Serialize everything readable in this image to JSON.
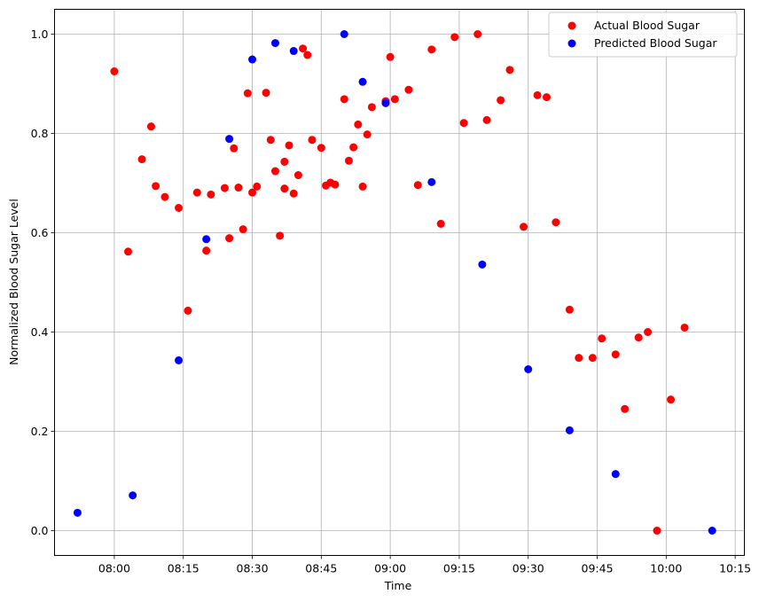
{
  "chart_data": {
    "type": "scatter",
    "title": "",
    "xlabel": "Time",
    "ylabel": "Normalized Blood Sugar Level",
    "xlim": [
      "07:47",
      "10:17"
    ],
    "ylim": [
      -0.05,
      1.05
    ],
    "x_ticks": [
      "08:00",
      "08:15",
      "08:30",
      "08:45",
      "09:00",
      "09:15",
      "09:30",
      "09:45",
      "10:00",
      "10:15"
    ],
    "y_ticks": [
      "0.0",
      "0.2",
      "0.4",
      "0.6",
      "0.8",
      "1.0"
    ],
    "grid": true,
    "legend_position": "upper right",
    "series": [
      {
        "name": "Actual Blood Sugar",
        "color": "#ff0000",
        "points": [
          [
            "08:00",
            0.925
          ],
          [
            "08:03",
            0.562
          ],
          [
            "08:06",
            0.748
          ],
          [
            "08:08",
            0.814
          ],
          [
            "08:09",
            0.694
          ],
          [
            "08:11",
            0.672
          ],
          [
            "08:14",
            0.65
          ],
          [
            "08:16",
            0.443
          ],
          [
            "08:18",
            0.681
          ],
          [
            "08:20",
            0.564
          ],
          [
            "08:21",
            0.677
          ],
          [
            "08:24",
            0.69
          ],
          [
            "08:25",
            0.589
          ],
          [
            "08:26",
            0.77
          ],
          [
            "08:27",
            0.691
          ],
          [
            "08:28",
            0.607
          ],
          [
            "08:29",
            0.881
          ],
          [
            "08:30",
            0.681
          ],
          [
            "08:31",
            0.693
          ],
          [
            "08:33",
            0.882
          ],
          [
            "08:34",
            0.787
          ],
          [
            "08:35",
            0.724
          ],
          [
            "08:36",
            0.594
          ],
          [
            "08:37",
            0.743
          ],
          [
            "08:37",
            0.689
          ],
          [
            "08:38",
            0.776
          ],
          [
            "08:39",
            0.679
          ],
          [
            "08:40",
            0.716
          ],
          [
            "08:41",
            0.971
          ],
          [
            "08:42",
            0.958
          ],
          [
            "08:43",
            0.787
          ],
          [
            "08:45",
            0.771
          ],
          [
            "08:46",
            0.695
          ],
          [
            "08:47",
            0.701
          ],
          [
            "08:48",
            0.697
          ],
          [
            "08:50",
            0.869
          ],
          [
            "08:51",
            0.745
          ],
          [
            "08:52",
            0.772
          ],
          [
            "08:53",
            0.818
          ],
          [
            "08:54",
            0.693
          ],
          [
            "08:55",
            0.798
          ],
          [
            "08:56",
            0.853
          ],
          [
            "08:59",
            0.865
          ],
          [
            "09:00",
            0.954
          ],
          [
            "09:01",
            0.869
          ],
          [
            "09:04",
            0.888
          ],
          [
            "09:06",
            0.696
          ],
          [
            "09:09",
            0.969
          ],
          [
            "09:11",
            0.618
          ],
          [
            "09:14",
            0.994
          ],
          [
            "09:16",
            0.821
          ],
          [
            "09:19",
            1.0
          ],
          [
            "09:21",
            0.827
          ],
          [
            "09:24",
            0.867
          ],
          [
            "09:26",
            0.928
          ],
          [
            "09:29",
            0.612
          ],
          [
            "09:32",
            0.877
          ],
          [
            "09:34",
            0.873
          ],
          [
            "09:36",
            0.621
          ],
          [
            "09:39",
            0.445
          ],
          [
            "09:41",
            0.348
          ],
          [
            "09:44",
            0.348
          ],
          [
            "09:46",
            0.387
          ],
          [
            "09:49",
            0.355
          ],
          [
            "09:51",
            0.245
          ],
          [
            "09:54",
            0.389
          ],
          [
            "09:56",
            0.4
          ],
          [
            "09:58",
            0.0
          ],
          [
            "10:01",
            0.264
          ],
          [
            "10:04",
            0.409
          ]
        ]
      },
      {
        "name": "Predicted Blood Sugar",
        "color": "#0000ff",
        "points": [
          [
            "07:52",
            0.036
          ],
          [
            "08:04",
            0.071
          ],
          [
            "08:14",
            0.343
          ],
          [
            "08:20",
            0.587
          ],
          [
            "08:25",
            0.789
          ],
          [
            "08:30",
            0.949
          ],
          [
            "08:35",
            0.982
          ],
          [
            "08:39",
            0.966
          ],
          [
            "08:50",
            1.0
          ],
          [
            "08:54",
            0.904
          ],
          [
            "08:59",
            0.861
          ],
          [
            "09:09",
            0.702
          ],
          [
            "09:20",
            0.536
          ],
          [
            "09:30",
            0.325
          ],
          [
            "09:39",
            0.202
          ],
          [
            "09:49",
            0.114
          ],
          [
            "10:10",
            0.0
          ]
        ]
      }
    ]
  }
}
